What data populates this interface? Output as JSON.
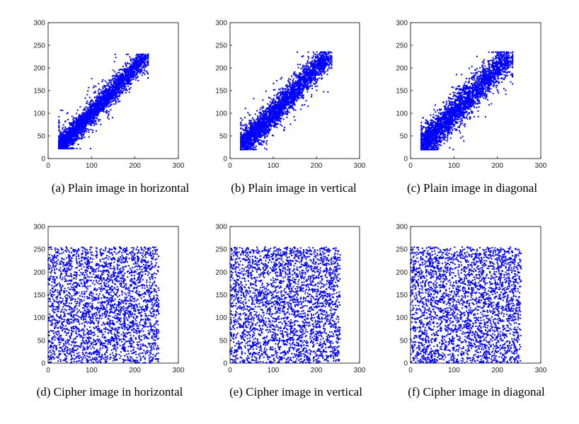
{
  "panels": [
    {
      "caption": "(a) Plain image in horizontal"
    },
    {
      "caption": "(b) Plain image in vertical"
    },
    {
      "caption": "(c) Plain image in diagonal"
    },
    {
      "caption": "(d) Cipher image in horizontal"
    },
    {
      "caption": "(e) Cipher image in vertical"
    },
    {
      "caption": "(f) Cipher image in diagonal"
    }
  ],
  "chart_data": [
    {
      "type": "scatter",
      "xlim": [
        0,
        300
      ],
      "ylim": [
        0,
        300
      ],
      "xticks": [
        0,
        100,
        200,
        300
      ],
      "yticks": [
        0,
        50,
        100,
        150,
        200,
        250,
        300
      ],
      "grid": false,
      "color": "#0000ff",
      "distribution": "correlated",
      "pattern": "horizontal",
      "x_range": [
        25,
        230
      ],
      "y_range": [
        22,
        230
      ],
      "point_count": 3000
    },
    {
      "type": "scatter",
      "xlim": [
        0,
        300
      ],
      "ylim": [
        0,
        300
      ],
      "xticks": [
        0,
        100,
        200,
        300
      ],
      "yticks": [
        0,
        50,
        100,
        150,
        200,
        250,
        300
      ],
      "grid": false,
      "color": "#0000ff",
      "distribution": "correlated",
      "pattern": "vertical",
      "x_range": [
        25,
        235
      ],
      "y_range": [
        20,
        235
      ],
      "point_count": 3000
    },
    {
      "type": "scatter",
      "xlim": [
        0,
        300
      ],
      "ylim": [
        0,
        300
      ],
      "xticks": [
        0,
        100,
        200,
        300
      ],
      "yticks": [
        0,
        50,
        100,
        150,
        200,
        250,
        300
      ],
      "grid": false,
      "color": "#0000ff",
      "distribution": "correlated",
      "pattern": "diagonal",
      "x_range": [
        25,
        235
      ],
      "y_range": [
        20,
        235
      ],
      "point_count": 3000
    },
    {
      "type": "scatter",
      "xlim": [
        0,
        300
      ],
      "ylim": [
        0,
        300
      ],
      "xticks": [
        0,
        100,
        200,
        300
      ],
      "yticks": [
        0,
        50,
        100,
        150,
        200,
        250,
        300
      ],
      "grid": false,
      "color": "#0000ff",
      "distribution": "uniform",
      "x_range": [
        0,
        255
      ],
      "y_range": [
        0,
        255
      ],
      "point_count": 3000
    },
    {
      "type": "scatter",
      "xlim": [
        0,
        300
      ],
      "ylim": [
        0,
        300
      ],
      "xticks": [
        0,
        100,
        200,
        300
      ],
      "yticks": [
        0,
        50,
        100,
        150,
        200,
        250,
        300
      ],
      "grid": false,
      "color": "#0000ff",
      "distribution": "uniform",
      "x_range": [
        0,
        255
      ],
      "y_range": [
        0,
        255
      ],
      "point_count": 3000
    },
    {
      "type": "scatter",
      "xlim": [
        0,
        300
      ],
      "ylim": [
        0,
        300
      ],
      "xticks": [
        0,
        100,
        200,
        300
      ],
      "yticks": [
        0,
        50,
        100,
        150,
        200,
        250,
        300
      ],
      "grid": false,
      "color": "#0000ff",
      "distribution": "uniform",
      "x_range": [
        0,
        255
      ],
      "y_range": [
        0,
        255
      ],
      "point_count": 3000
    }
  ]
}
